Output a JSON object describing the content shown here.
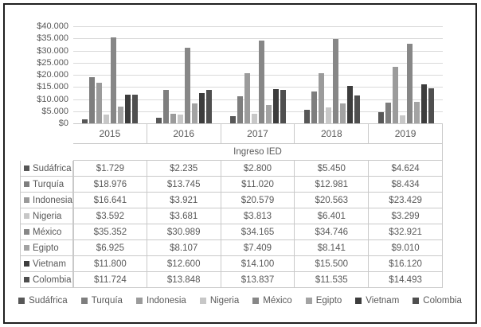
{
  "chart_data": {
    "type": "bar",
    "title": "",
    "table_header": "Ingreso IED",
    "categories": [
      "2015",
      "2016",
      "2017",
      "2018",
      "2019"
    ],
    "series": [
      {
        "name": "Sudáfrica",
        "color": "#575757",
        "values": [
          1729,
          2235,
          2800,
          5450,
          4624
        ],
        "formatted": [
          "$1.729",
          "$2.235",
          "$2.800",
          "$5.450",
          "$4.624"
        ]
      },
      {
        "name": "Turquía",
        "color": "#7e7e7e",
        "values": [
          18976,
          13745,
          11020,
          12981,
          8434
        ],
        "formatted": [
          "$18.976",
          "$13.745",
          "$11.020",
          "$12.981",
          "$8.434"
        ]
      },
      {
        "name": "Indonesia",
        "color": "#9b9b9b",
        "values": [
          16641,
          3921,
          20579,
          20563,
          23429
        ],
        "formatted": [
          "$16.641",
          "$3.921",
          "$20.579",
          "$20.563",
          "$23.429"
        ]
      },
      {
        "name": "Nigeria",
        "color": "#c7c7c7",
        "values": [
          3592,
          3681,
          3813,
          6401,
          3299
        ],
        "formatted": [
          "$3.592",
          "$3.681",
          "$3.813",
          "$6.401",
          "$3.299"
        ]
      },
      {
        "name": "México",
        "color": "#878787",
        "values": [
          35352,
          30989,
          34165,
          34746,
          32921
        ],
        "formatted": [
          "$35.352",
          "$30.989",
          "$34.165",
          "$34.746",
          "$32.921"
        ]
      },
      {
        "name": "Egipto",
        "color": "#a3a3a3",
        "values": [
          6925,
          8107,
          7409,
          8141,
          9010
        ],
        "formatted": [
          "$6.925",
          "$8.107",
          "$7.409",
          "$8.141",
          "$9.010"
        ]
      },
      {
        "name": "Vietnam",
        "color": "#3d3d3d",
        "values": [
          11800,
          12600,
          14100,
          15500,
          16120
        ],
        "formatted": [
          "$11.800",
          "$12.600",
          "$14.100",
          "$15.500",
          "$16.120"
        ]
      },
      {
        "name": "Colombia",
        "color": "#4f4f4f",
        "values": [
          11724,
          13848,
          13837,
          11535,
          14493
        ],
        "formatted": [
          "$11.724",
          "$13.848",
          "$13.837",
          "$11.535",
          "$14.493"
        ]
      }
    ],
    "ylim": [
      0,
      40000
    ],
    "ytick_step": 5000,
    "ytick_labels": [
      "$40.000",
      "$35.000",
      "$30.000",
      "$25.000",
      "$20.000",
      "$15.000",
      "$10.000",
      "$5.000",
      "$0"
    ],
    "grid": true,
    "legend_position": "bottom",
    "data_table_shown": true,
    "colors": {
      "text": "#595959",
      "gridline": "#d9d9d9",
      "table_border": "#c9c9c9",
      "frame_border": "#1f1f1f"
    }
  }
}
